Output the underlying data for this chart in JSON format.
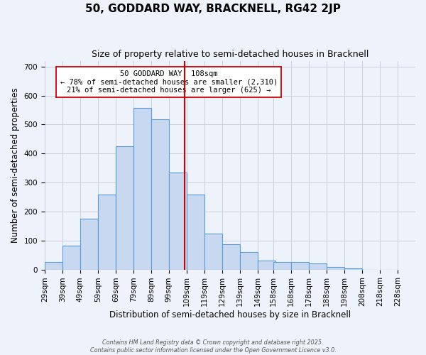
{
  "title": "50, GODDARD WAY, BRACKNELL, RG42 2JP",
  "subtitle": "Size of property relative to semi-detached houses in Bracknell",
  "xlabel": "Distribution of semi-detached houses by size in Bracknell",
  "ylabel": "Number of semi-detached properties",
  "bin_labels": [
    "29sqm",
    "39sqm",
    "49sqm",
    "59sqm",
    "69sqm",
    "79sqm",
    "89sqm",
    "99sqm",
    "109sqm",
    "119sqm",
    "129sqm",
    "139sqm",
    "149sqm",
    "158sqm",
    "168sqm",
    "178sqm",
    "188sqm",
    "198sqm",
    "208sqm",
    "218sqm",
    "228sqm"
  ],
  "bin_edges": [
    29,
    39,
    49,
    59,
    69,
    79,
    89,
    99,
    109,
    119,
    129,
    139,
    149,
    158,
    168,
    178,
    188,
    198,
    208,
    218,
    228
  ],
  "values": [
    25,
    82,
    175,
    258,
    425,
    558,
    518,
    335,
    258,
    125,
    88,
    60,
    32,
    27,
    25,
    20,
    8,
    3,
    0,
    0
  ],
  "bar_color": "#c8d8f0",
  "bar_edge_color": "#5b9bd5",
  "vline_x": 108,
  "vline_color": "#cc0000",
  "annotation_title": "50 GODDARD WAY: 108sqm",
  "annotation_line1": "← 78% of semi-detached houses are smaller (2,310)",
  "annotation_line2": "21% of semi-detached houses are larger (625) →",
  "annotation_box_color": "#ffffff",
  "annotation_box_edge_color": "#cc0000",
  "ylim": [
    0,
    720
  ],
  "yticks": [
    0,
    100,
    200,
    300,
    400,
    500,
    600,
    700
  ],
  "title_fontsize": 11,
  "subtitle_fontsize": 9,
  "xlabel_fontsize": 8.5,
  "ylabel_fontsize": 8.5,
  "tick_fontsize": 7.5,
  "footer_line1": "Contains HM Land Registry data © Crown copyright and database right 2025.",
  "footer_line2": "Contains public sector information licensed under the Open Government Licence v3.0.",
  "background_color": "#eef2fb",
  "grid_color": "#c8cfe0"
}
